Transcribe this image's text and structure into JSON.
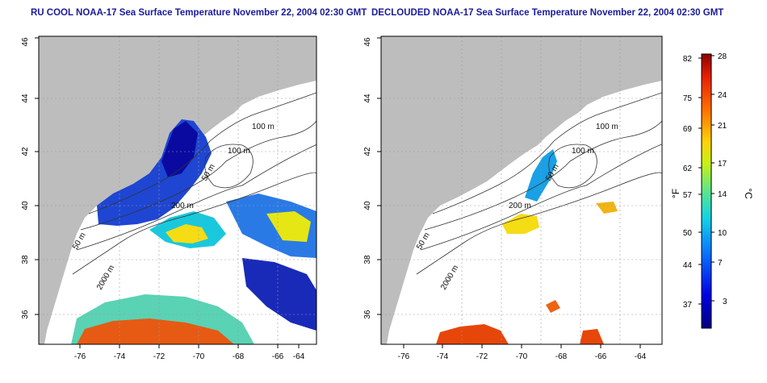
{
  "panels": [
    {
      "title": "RU COOL NOAA-17 Sea Surface Temperature November 22, 2004 02:30 GMT",
      "lon_ticks": [
        "-76",
        "-74",
        "-72",
        "-70",
        "-68",
        "-66",
        "-64"
      ],
      "lat_ticks": [
        "36",
        "38",
        "40",
        "42",
        "44",
        "46"
      ],
      "contour_labels": [
        "100 m",
        "100 m",
        "50 m",
        "200 m",
        "50 m",
        "2000 m"
      ]
    },
    {
      "title": "DECLOUDED NOAA-17 Sea Surface Temperature November 22, 2004 02:30 GMT",
      "lon_ticks": [
        "-76",
        "-74",
        "-72",
        "-70",
        "-68",
        "-66",
        "-64"
      ],
      "lat_ticks": [
        "36",
        "38",
        "40",
        "42",
        "44",
        "46"
      ],
      "contour_labels": [
        "100 m",
        "100 m",
        "50 m",
        "200 m",
        "50 m",
        "2000 m"
      ]
    }
  ],
  "colorbar": {
    "left_unit": "°F",
    "right_unit": "°C",
    "f_ticks": [
      "82",
      "75",
      "69",
      "62",
      "57",
      "50",
      "44",
      "37"
    ],
    "c_ticks": [
      "28",
      "24",
      "21",
      "17",
      "14",
      "10",
      "7",
      "3"
    ]
  },
  "colors": {
    "land": "#bdbdbd",
    "water": "#ffffff",
    "cold": "#0a0aa0",
    "cool": "#1e5ae6",
    "mid": "#19c8dc",
    "warm": "#f5dc14",
    "hot": "#e63c0a"
  }
}
